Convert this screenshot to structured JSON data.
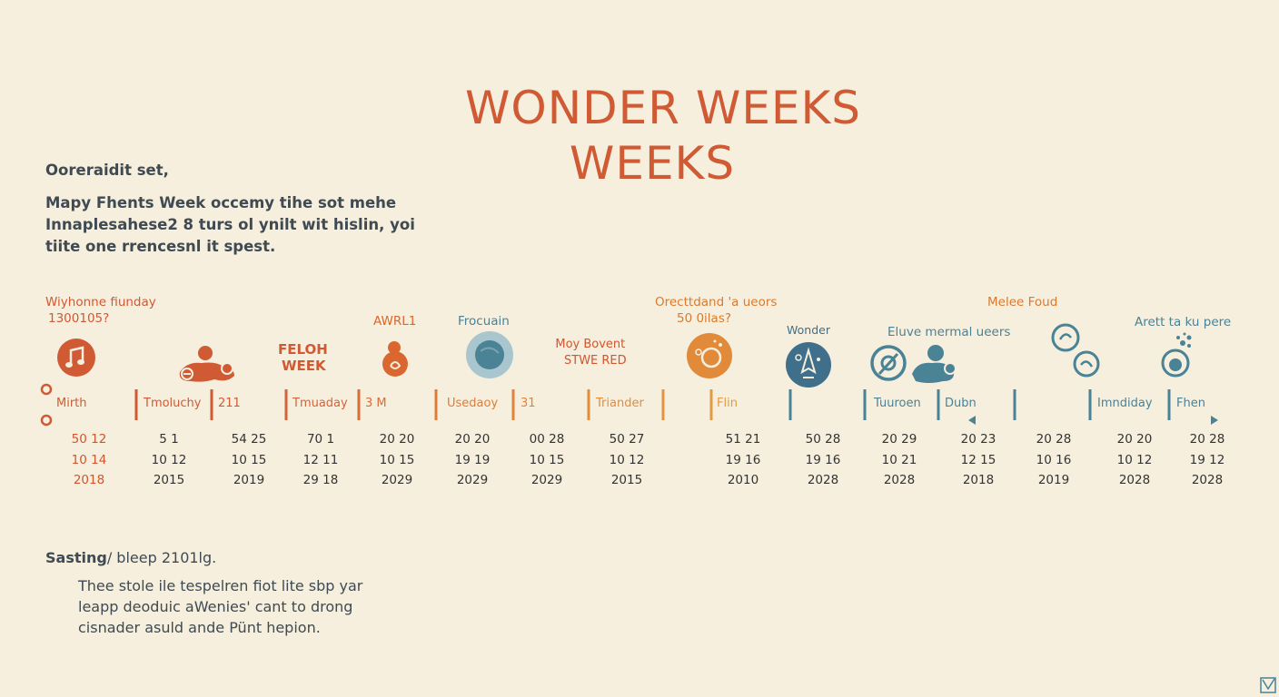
{
  "title": {
    "line1": "WONDER WEEKS",
    "line2": "WEEKS"
  },
  "intro": {
    "line1": "Ooreraidit  set,",
    "line2": "Mapy Fhents Week occemy tihe sot mehe",
    "line3": "Innaplesahese2 8  turs ol ynilt wit hislin, yoi",
    "line4": "tiite one rrencesnl it spest."
  },
  "leaps": [
    {
      "label": [
        "Wiyhonne fiunday",
        "1300105?"
      ],
      "icon": "music-note-icon",
      "color": "#cf5a34"
    },
    {
      "label": [],
      "icon": "crawling-baby-icon",
      "color": "#cf5a34"
    },
    {
      "label": [
        "FELOH",
        "WEEK"
      ],
      "icon": "",
      "color": "#cf5a34"
    },
    {
      "label": [
        "AWRL1"
      ],
      "icon": "rattle-icon",
      "color": "#d9672f"
    },
    {
      "label": [
        "Frocuain"
      ],
      "icon": "planet-icon",
      "color": "#4a8296"
    },
    {
      "label": [
        "Moy Bovent",
        "STWE RED"
      ],
      "icon": "",
      "color": "#d0562f"
    },
    {
      "label": [
        "Orecttdand 'a ueors",
        "50 0ilas?"
      ],
      "icon": "clock-gear-icon",
      "color": "#d97a2f"
    },
    {
      "label": [
        "Wonder"
      ],
      "icon": "rocket-icon",
      "color": "#3f6f8a"
    },
    {
      "label": [
        "Eluve mermal ueers"
      ],
      "icon": "playing-baby-icon",
      "color": "#4a8296"
    },
    {
      "label": [
        "Melee Foud"
      ],
      "icon": "",
      "color": "#d97a2f"
    },
    {
      "label": [],
      "icon": "bubbles-icon",
      "color": "#4a8296"
    },
    {
      "label": [
        "Arett ta ku pere"
      ],
      "icon": "bubble-cluster-icon",
      "color": "#4a8296"
    }
  ],
  "timeline_labels": [
    "Mirth",
    "Tmoluchy",
    "211",
    "Tmuaday",
    "3 M",
    "Usedaoy",
    "31",
    "Triander",
    "Flin",
    "Tuuroen",
    "Dubn",
    "Imndiday",
    "Fhen"
  ],
  "date_columns": [
    [
      "50 12",
      "10 14",
      "2018"
    ],
    [
      "5 1",
      "10 12",
      "2015"
    ],
    [
      "54 25",
      "10 15",
      "2019"
    ],
    [
      "70 1",
      "12 11",
      "29 18"
    ],
    [
      "20 20",
      "10 15",
      "2029"
    ],
    [
      "20 20",
      "19 19",
      "2029"
    ],
    [
      "00 28",
      "10 15",
      "2029"
    ],
    [
      "50 27",
      "10 12",
      "2015"
    ],
    [
      "51 21",
      "19 16",
      "2010"
    ],
    [
      "50 28",
      "19 16",
      "2028"
    ],
    [
      "20 29",
      "10 21",
      "2028"
    ],
    [
      "20 23",
      "12 15",
      "2018"
    ],
    [
      "20 28",
      "10 16",
      "2019"
    ],
    [
      "20 20",
      "10 12",
      "2028"
    ],
    [
      "20 28",
      "19 12",
      "2028"
    ]
  ],
  "bottom": {
    "head_bold": "Sasting",
    "head_rest": "/ bleep 2101lg.",
    "line1": "Thee stole ile tespelren fiot lite sbp yar",
    "line2": "leapp deoduic aWenies' cant to drong",
    "line3": "cisnader asuld ande Pünt hepion."
  },
  "colors": {
    "orange": "#cf5a34",
    "amber": "#e08a3a",
    "teal": "#4a8296",
    "background": "#f6efdd"
  }
}
